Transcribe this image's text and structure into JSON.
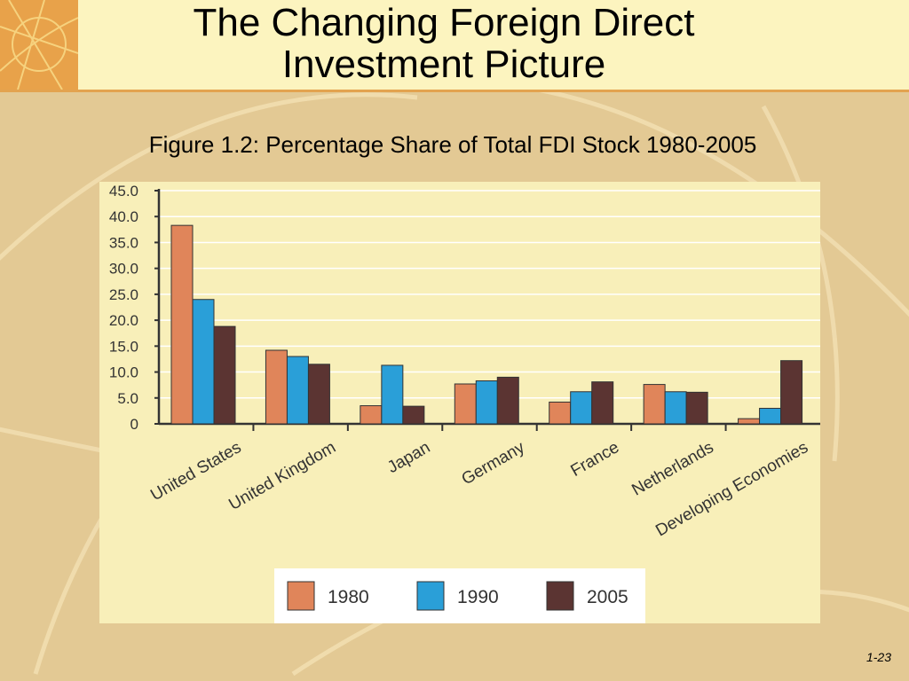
{
  "slide": {
    "title_line1": "The Changing Foreign Direct",
    "title_line2": "Investment Picture",
    "figure_caption": "Figure 1.2: Percentage Share of Total FDI Stock 1980-2005",
    "page_number": "1-23"
  },
  "colors": {
    "background": "#e3c994",
    "header": "#fcf4bf",
    "accent": "#e8a24a",
    "chart_panel": "#f8efb9"
  },
  "chart_data": {
    "type": "bar",
    "title": "",
    "xlabel": "",
    "ylabel": "",
    "ylim": [
      0,
      45
    ],
    "yticks": [
      "45.0",
      "40.0",
      "35.0",
      "30.0",
      "25.0",
      "20.0",
      "15.0",
      "10.0",
      "5.0",
      "0"
    ],
    "ytick_values": [
      45,
      40,
      35,
      30,
      25,
      20,
      15,
      10,
      5,
      0
    ],
    "grid": true,
    "legend_position": "bottom-center",
    "categories": [
      "United States",
      "United Kingdom",
      "Japan",
      "Germany",
      "France",
      "Netherlands",
      "Developing Economies"
    ],
    "series": [
      {
        "name": "1980",
        "color": "#e0855a",
        "values": [
          38.3,
          14.2,
          3.5,
          7.7,
          4.2,
          7.6,
          1.0
        ]
      },
      {
        "name": "1990",
        "color": "#2a9fd8",
        "values": [
          24.0,
          13.0,
          11.3,
          8.3,
          6.2,
          6.2,
          3.0
        ]
      },
      {
        "name": "2005",
        "color": "#5b3432",
        "values": [
          18.8,
          11.5,
          3.4,
          9.0,
          8.1,
          6.1,
          12.2
        ]
      }
    ]
  }
}
